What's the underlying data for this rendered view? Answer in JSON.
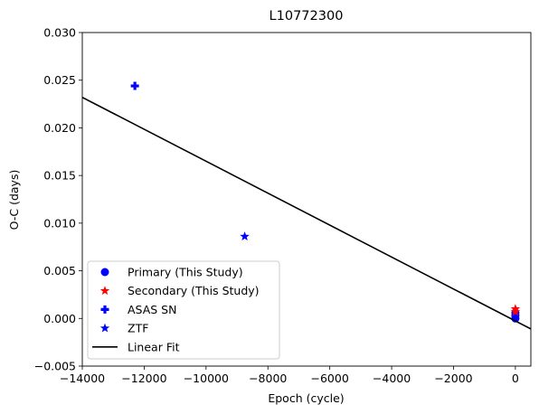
{
  "chart_data": {
    "type": "scatter",
    "title": "L10772300",
    "xlabel": "Epoch (cycle)",
    "ylabel": "O-C (days)",
    "xlim": [
      -14000,
      500
    ],
    "ylim": [
      -0.005,
      0.03
    ],
    "xticks": [
      -14000,
      -12000,
      -10000,
      -8000,
      -6000,
      -4000,
      -2000,
      0
    ],
    "xtick_labels": [
      "−14000",
      "−12000",
      "−10000",
      "−8000",
      "−6000",
      "−4000",
      "−2000",
      "0"
    ],
    "yticks": [
      -0.005,
      0.0,
      0.005,
      0.01,
      0.015,
      0.02,
      0.025,
      0.03
    ],
    "ytick_labels": [
      "−0.005",
      "0.000",
      "0.005",
      "0.010",
      "0.015",
      "0.020",
      "0.025",
      "0.030"
    ],
    "grid": false,
    "legend_position": "lower-left",
    "series": [
      {
        "name": "Primary (This Study)",
        "marker": "circle",
        "color": "#0000ff",
        "points": [
          [
            0,
            0.0
          ],
          [
            0,
            0.0003
          ],
          [
            0,
            0.0006
          ]
        ]
      },
      {
        "name": "Secondary (This Study)",
        "marker": "star",
        "color": "#ff0000",
        "points": [
          [
            0,
            0.001
          ],
          [
            0,
            0.0007
          ]
        ]
      },
      {
        "name": "ASAS SN",
        "marker": "plus",
        "color": "#0000ff",
        "points": [
          [
            -12300,
            0.0244
          ]
        ]
      },
      {
        "name": "ZTF",
        "marker": "star",
        "color": "#0000ff",
        "points": [
          [
            -8750,
            0.0086
          ]
        ]
      },
      {
        "name": "Linear Fit",
        "marker": "line",
        "color": "#000000",
        "points": [
          [
            -14000,
            0.0232
          ],
          [
            500,
            -0.0011
          ]
        ]
      }
    ]
  }
}
